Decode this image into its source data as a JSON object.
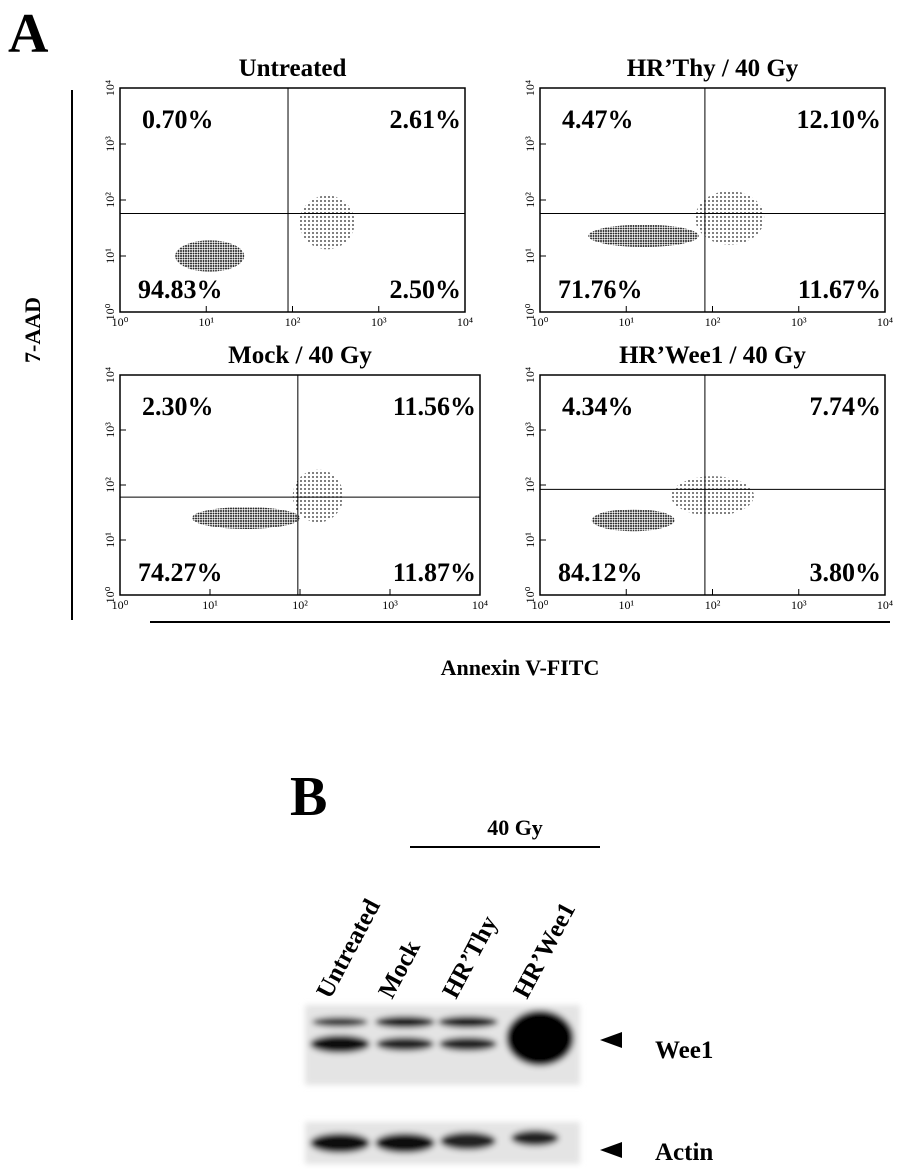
{
  "panel_a": {
    "label": "A",
    "y_axis_label": "7-AAD",
    "x_axis_label": "Annexin V-FITC",
    "axis_ticks": [
      {
        "value": 1,
        "label": "10⁰"
      },
      {
        "value": 10,
        "label": "10¹"
      },
      {
        "value": 100,
        "label": "10²"
      },
      {
        "value": 1000,
        "label": "10³"
      },
      {
        "value": 10000,
        "label": "10⁴"
      }
    ],
    "plots": [
      {
        "title": "Untreated",
        "upper_left": "0.70%",
        "upper_right": "2.61%",
        "lower_left": "94.83%",
        "lower_right": "2.50%"
      },
      {
        "title": "HR’Thy / 40 Gy",
        "upper_left": "4.47%",
        "upper_right": "12.10%",
        "lower_left": "71.76%",
        "lower_right": "11.67%"
      },
      {
        "title": "Mock / 40 Gy",
        "upper_left": "2.30%",
        "upper_right": "11.56%",
        "lower_left": "74.27%",
        "lower_right": "11.87%"
      },
      {
        "title": "HR’Wee1 / 40 Gy",
        "upper_left": "4.34%",
        "upper_right": "7.74%",
        "lower_left": "84.12%",
        "lower_right": "3.80%"
      }
    ]
  },
  "panel_b": {
    "label": "B",
    "dose": "40 Gy",
    "lanes": [
      "Untreated",
      "Mock",
      "HR’Thy",
      "HR’Wee1"
    ],
    "bands": [
      "Wee1",
      "Actin"
    ]
  }
}
